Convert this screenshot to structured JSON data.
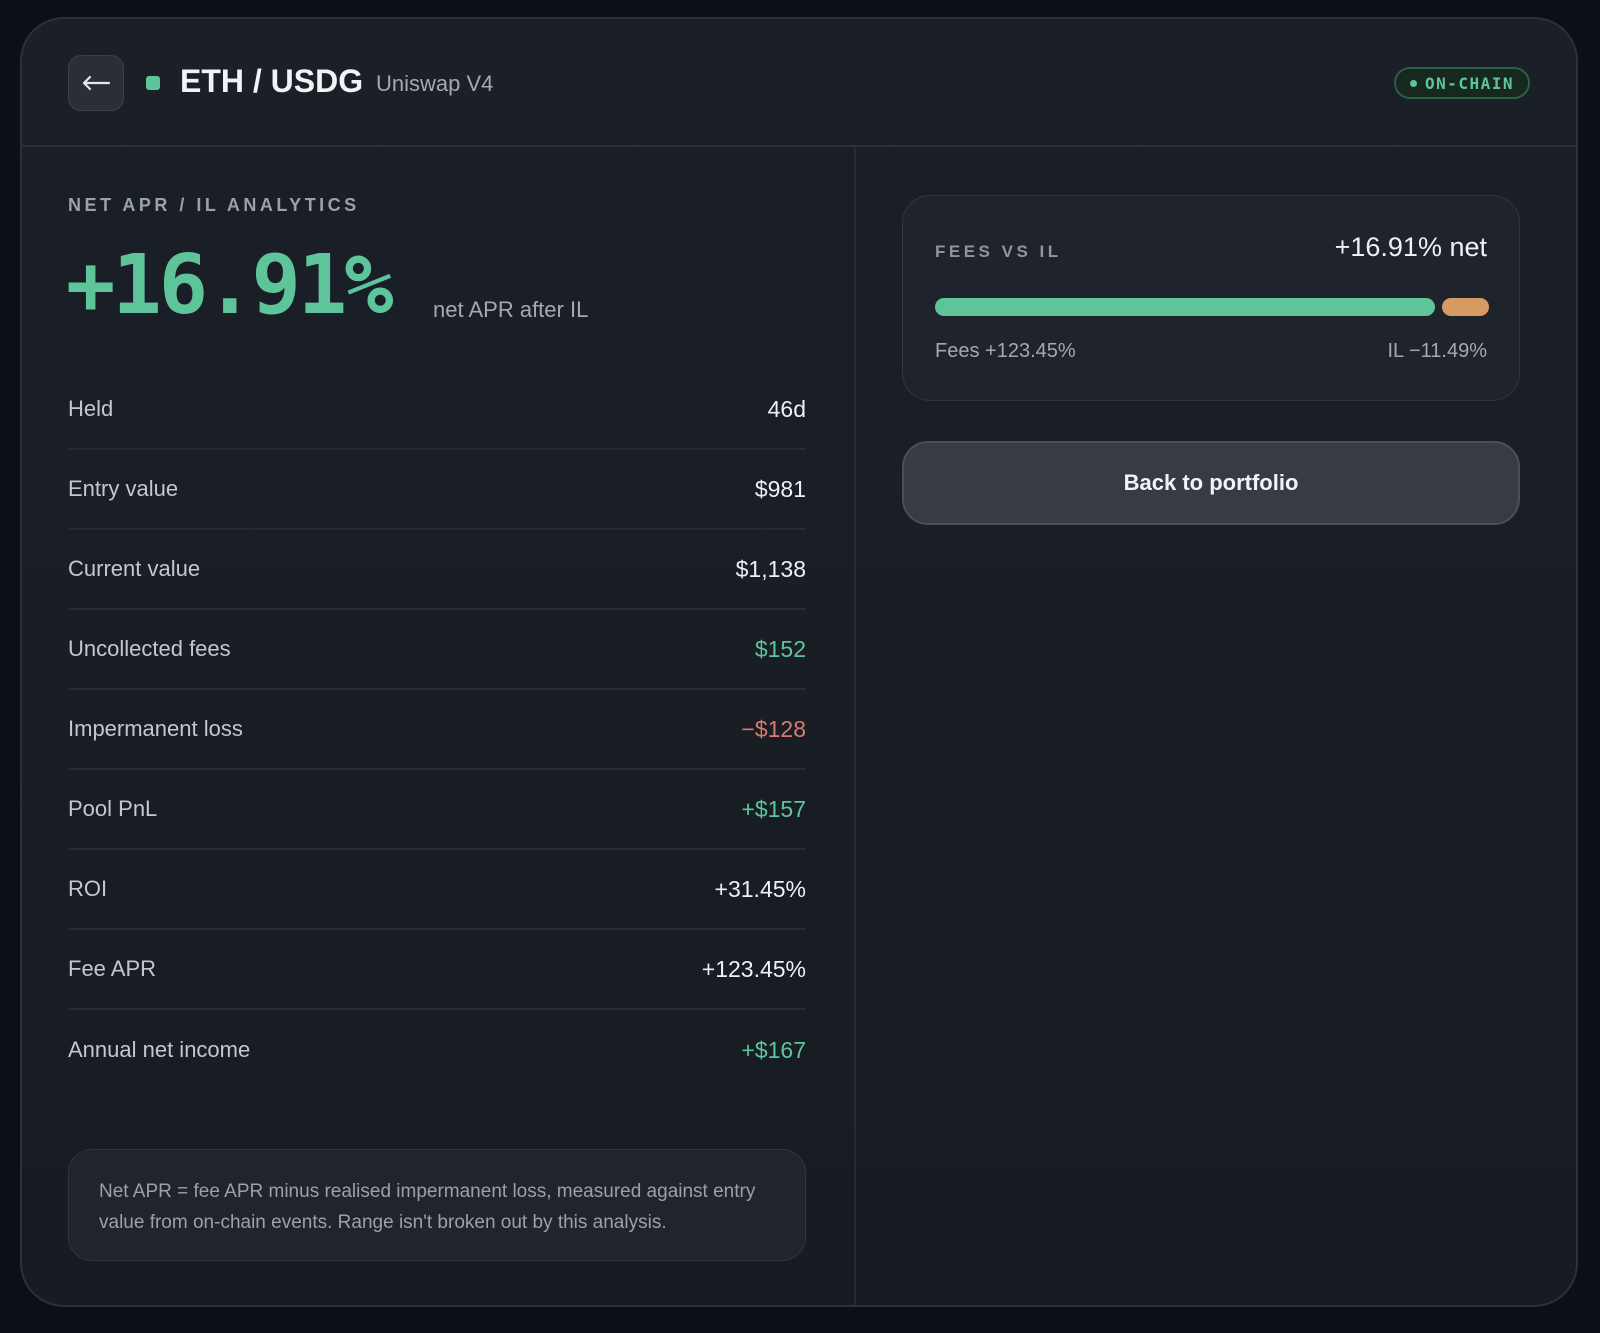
{
  "header": {
    "back_icon": "arrow-left-icon",
    "pair": "ETH / USDG",
    "protocol": "Uniswap V4",
    "badge": "ON-CHAIN",
    "accent_color": "#5ec59a"
  },
  "analytics": {
    "section_label": "NET APR / IL ANALYTICS",
    "net_apr": "+16.91%",
    "net_apr_caption": "net APR after IL",
    "rows": [
      {
        "label": "Held",
        "value": "46d",
        "tone": "neutral"
      },
      {
        "label": "Entry value",
        "value": "$981",
        "tone": "neutral"
      },
      {
        "label": "Current value",
        "value": "$1,138",
        "tone": "neutral"
      },
      {
        "label": "Uncollected fees",
        "value": "$152",
        "tone": "pos"
      },
      {
        "label": "Impermanent loss",
        "value": "−$128",
        "tone": "neg"
      },
      {
        "label": "Pool PnL",
        "value": "+$157",
        "tone": "pos"
      },
      {
        "label": "ROI",
        "value": "+31.45%",
        "tone": "neutral"
      },
      {
        "label": "Fee APR",
        "value": "+123.45%",
        "tone": "neutral"
      },
      {
        "label": "Annual net income",
        "value": "+$167",
        "tone": "pos"
      }
    ],
    "note": "Net APR = fee APR minus realised impermanent loss, measured against entry value from on-chain events. Range isn't broken out by this analysis."
  },
  "fees_vs_il": {
    "label": "FEES VS IL",
    "net": "+16.91% net",
    "fees_label": "Fees +123.45%",
    "il_label": "IL −11.49%",
    "fees_pct": 123.45,
    "il_pct": 11.49,
    "fees_color": "#5ec59a",
    "il_color": "#d69b63"
  },
  "actions": {
    "back_to_portfolio": "Back to portfolio"
  }
}
